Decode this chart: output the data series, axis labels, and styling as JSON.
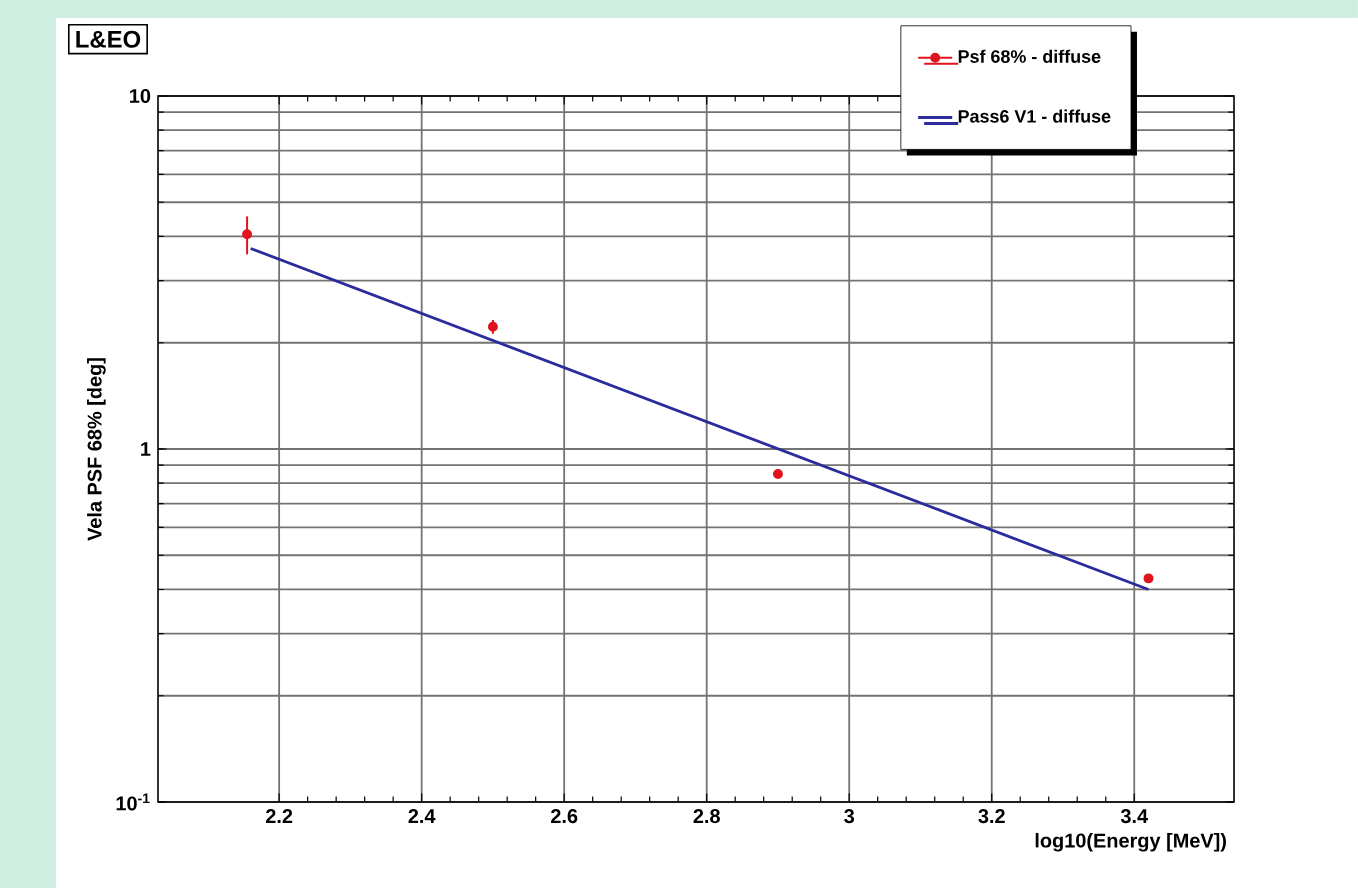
{
  "chart_data": {
    "type": "scatter",
    "xlabel": "log10(Energy [MeV])",
    "ylabel": "Vela PSF 68% [deg]",
    "annotations": [
      "L&EO"
    ],
    "x": [
      2.155,
      2.5,
      2.9,
      3.42
    ],
    "series": [
      {
        "name": "Psf 68% - diffuse",
        "color": "#e0141e",
        "marker": "circle",
        "values": [
          4.06,
          2.22,
          0.85,
          0.43
        ],
        "errors": [
          0.5,
          0.1,
          null,
          null
        ]
      },
      {
        "name": "Pass6 V1 - diffuse",
        "type": "line",
        "color": "#2b2b9b",
        "marker": "none",
        "line_style": "solid",
        "x": [
          2.16,
          3.42
        ],
        "values": [
          3.7,
          0.4
        ]
      }
    ],
    "xlim": [
      2.03,
      3.54
    ],
    "xticks": [
      2.2,
      2.4,
      2.6,
      2.8,
      3,
      3.2,
      3.4
    ],
    "ylim": [
      0.1,
      10
    ],
    "yticks": [
      {
        "value": 0.1,
        "label": "10$^{-1}$"
      },
      1,
      10
    ],
    "log": "y",
    "grid": true,
    "legend": "top right"
  }
}
